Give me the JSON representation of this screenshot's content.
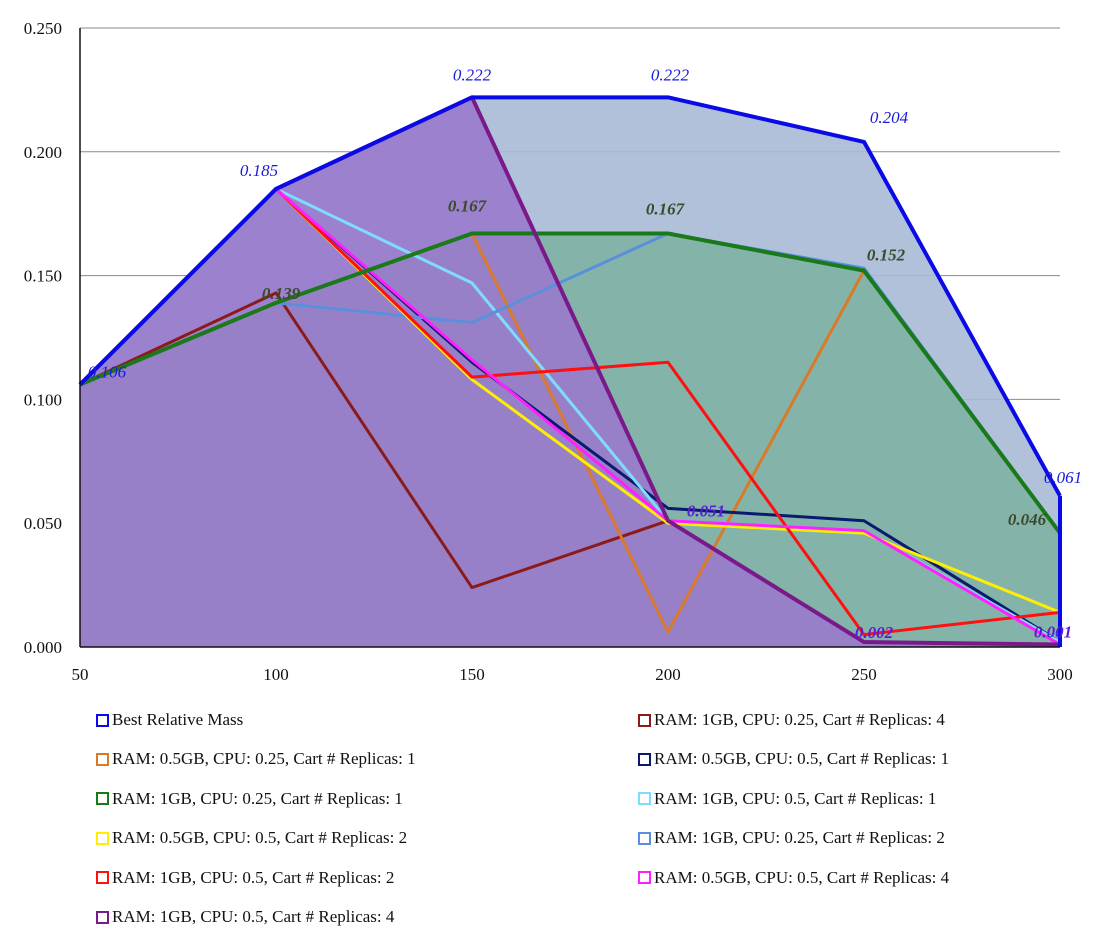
{
  "chart_data": {
    "type": "area",
    "title": "",
    "xlabel": "",
    "ylabel": "",
    "x": [
      50,
      100,
      150,
      200,
      250,
      300
    ],
    "x_ticks": [
      "50",
      "100",
      "150",
      "200",
      "250",
      "300"
    ],
    "y_ticks": [
      "0.000",
      "0.050",
      "0.100",
      "0.150",
      "0.200",
      "0.250"
    ],
    "xlim": [
      50,
      300
    ],
    "ylim": [
      0,
      0.25
    ],
    "grid": "horizontal",
    "legend_position": "bottom",
    "series": [
      {
        "name": "Best Relative Mass",
        "color": "#0a0ae6",
        "fill": "#a9bad6",
        "values": [
          0.106,
          0.185,
          0.222,
          0.222,
          0.204,
          0.061
        ]
      },
      {
        "name": "RAM: 1GB, CPU: 0.25, Cart # Replicas: 4",
        "color": "#8b1a1a",
        "values": [
          0.106,
          0.143,
          0.024,
          0.051,
          0.002,
          0.001
        ]
      },
      {
        "name": "RAM: 0.5GB, CPU: 0.25, Cart # Replicas: 1",
        "color": "#d97a2b",
        "values": [
          0.106,
          0.139,
          0.167,
          0.006,
          0.152,
          0.046
        ]
      },
      {
        "name": "RAM: 0.5GB, CPU: 0.5, Cart # Replicas: 1",
        "color": "#0a1a6e",
        "values": [
          0.106,
          0.185,
          0.115,
          0.056,
          0.051,
          0.002
        ]
      },
      {
        "name": "RAM: 1GB, CPU: 0.25, Cart # Replicas: 1",
        "color": "#1a7a1a",
        "fill": "#7fb3a3",
        "values": [
          0.106,
          0.139,
          0.167,
          0.167,
          0.152,
          0.046
        ]
      },
      {
        "name": "RAM: 1GB, CPU: 0.5, Cart # Replicas: 1",
        "color": "#7fdcff",
        "values": [
          0.106,
          0.185,
          0.147,
          0.051,
          0.047,
          0.002
        ]
      },
      {
        "name": "RAM: 0.5GB, CPU: 0.5, Cart # Replicas: 2",
        "color": "#ffee00",
        "values": [
          0.106,
          0.185,
          0.108,
          0.05,
          0.046,
          0.014
        ]
      },
      {
        "name": "RAM: 1GB, CPU: 0.25, Cart # Replicas: 2",
        "color": "#5a8fdc",
        "values": [
          0.106,
          0.139,
          0.131,
          0.167,
          0.153,
          0.046
        ]
      },
      {
        "name": "RAM: 1GB, CPU: 0.5, Cart # Replicas: 2",
        "color": "#ff1010",
        "values": [
          0.106,
          0.185,
          0.109,
          0.115,
          0.005,
          0.014
        ]
      },
      {
        "name": "RAM: 0.5GB, CPU: 0.5, Cart # Replicas: 4",
        "color": "#ff20ff",
        "values": [
          0.106,
          0.185,
          0.116,
          0.051,
          0.047,
          0.001
        ]
      },
      {
        "name": "RAM: 1GB, CPU: 0.5, Cart # Replicas: 4",
        "color": "#7a1a8a",
        "fill": "#9a7acc",
        "values": [
          0.106,
          0.185,
          0.222,
          0.051,
          0.002,
          0.001
        ]
      }
    ],
    "annotations": [
      {
        "text": "0.106",
        "x": 50,
        "y": 0.106,
        "color": "#1a1adc"
      },
      {
        "text": "0.185",
        "x": 100,
        "y": 0.185,
        "color": "#1a1adc"
      },
      {
        "text": "0.222",
        "x": 150,
        "y": 0.222,
        "color": "#1a1adc"
      },
      {
        "text": "0.222",
        "x": 200,
        "y": 0.222,
        "color": "#1a1adc"
      },
      {
        "text": "0.204",
        "x": 250,
        "y": 0.204,
        "color": "#1a1adc"
      },
      {
        "text": "0.061",
        "x": 300,
        "y": 0.061,
        "color": "#1a1adc"
      },
      {
        "text": "0.139",
        "x": 100,
        "y": 0.139,
        "color": "#3a4a2a",
        "bold": true
      },
      {
        "text": "0.167",
        "x": 150,
        "y": 0.167,
        "color": "#3a4a2a",
        "bold": true
      },
      {
        "text": "0.167",
        "x": 200,
        "y": 0.167,
        "color": "#3a4a2a",
        "bold": true
      },
      {
        "text": "0.152",
        "x": 250,
        "y": 0.152,
        "color": "#3a4a2a",
        "bold": true
      },
      {
        "text": "0.046",
        "x": 300,
        "y": 0.046,
        "color": "#3a4a2a",
        "bold": true
      },
      {
        "text": "0.051",
        "x": 200,
        "y": 0.051,
        "color": "#5a1adc",
        "bold": true
      },
      {
        "text": "0.002",
        "x": 250,
        "y": 0.002,
        "color": "#5a1adc",
        "bold": true
      },
      {
        "text": "0.001",
        "x": 300,
        "y": 0.001,
        "color": "#5a1adc",
        "bold": true
      }
    ]
  }
}
